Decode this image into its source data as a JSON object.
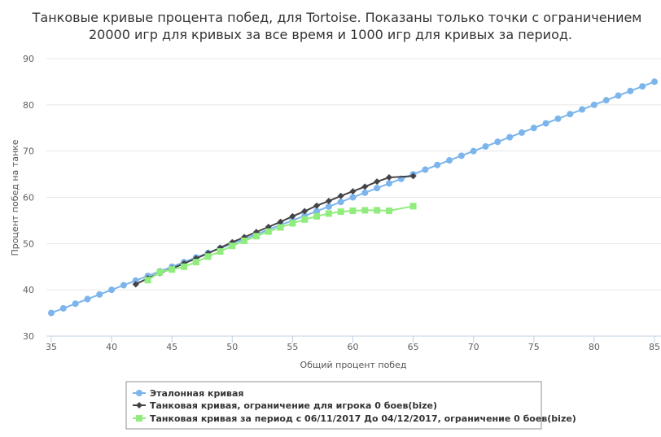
{
  "chart_data": {
    "type": "line",
    "title_line1": "Танковые кривые процента побед, для Tortoise. Показаны только точки с ограничением",
    "title_line2": "20000 игр для кривых за все время и 1000 игр для кривых за период.",
    "xlabel": "Общий процент побед",
    "ylabel": "Процент побед на танке",
    "xlim": [
      34.5,
      85.5
    ],
    "ylim": [
      30,
      90
    ],
    "xticks": [
      35,
      40,
      45,
      50,
      55,
      60,
      65,
      70,
      75,
      80,
      85
    ],
    "yticks": [
      30,
      40,
      50,
      60,
      70,
      80,
      90
    ],
    "grid": true,
    "legend_position": "bottom",
    "series": [
      {
        "name": "Эталонная кривая",
        "color": "#7cb5ec",
        "marker": "circle",
        "x": [
          35,
          36,
          37,
          38,
          39,
          40,
          41,
          42,
          43,
          44,
          45,
          46,
          47,
          48,
          49,
          50,
          51,
          52,
          53,
          54,
          55,
          56,
          57,
          58,
          59,
          60,
          61,
          62,
          63,
          64,
          65,
          66,
          67,
          68,
          69,
          70,
          71,
          72,
          73,
          74,
          75,
          76,
          77,
          78,
          79,
          80,
          81,
          82,
          83,
          84,
          85
        ],
        "y": [
          35,
          36,
          37,
          38,
          39,
          40,
          41,
          42,
          43,
          44,
          45,
          46,
          47,
          48,
          49,
          50,
          51,
          52,
          53,
          54,
          55,
          56,
          57,
          58,
          59,
          60,
          61,
          62,
          63,
          64,
          65,
          66,
          67,
          68,
          69,
          70,
          71,
          72,
          73,
          74,
          75,
          76,
          77,
          78,
          79,
          80,
          81,
          82,
          83,
          84,
          85
        ]
      },
      {
        "name": "Танковая кривая, ограничение для игрока 0 боев(bize)",
        "color": "#434348",
        "marker": "diamond",
        "x": [
          42,
          43,
          44,
          45,
          46,
          47,
          48,
          49,
          50,
          51,
          52,
          53,
          54,
          55,
          56,
          57,
          58,
          59,
          60,
          61,
          62,
          63,
          65
        ],
        "y": [
          41.2,
          42.5,
          43.6,
          44.6,
          45.7,
          46.8,
          47.9,
          49.1,
          50.3,
          51.4,
          52.5,
          53.6,
          54.7,
          55.9,
          57.0,
          58.2,
          59.2,
          60.3,
          61.3,
          62.3,
          63.4,
          64.3,
          64.6
        ]
      },
      {
        "name": "Танковая кривая за период с 06/11/2017 До 04/12/2017, ограничение 0 боев(bize)",
        "color": "#90ed7d",
        "marker": "square",
        "x": [
          43,
          44,
          45,
          46,
          47,
          48,
          49,
          50,
          51,
          52,
          53,
          54,
          55,
          56,
          57,
          58,
          59,
          60,
          61,
          62,
          63,
          65
        ],
        "y": [
          42.1,
          43.8,
          44.4,
          45.0,
          46.0,
          47.2,
          48.3,
          49.5,
          50.6,
          51.6,
          52.6,
          53.5,
          54.4,
          55.2,
          55.9,
          56.5,
          56.9,
          57.1,
          57.2,
          57.2,
          57.1,
          58.1
        ]
      }
    ]
  }
}
